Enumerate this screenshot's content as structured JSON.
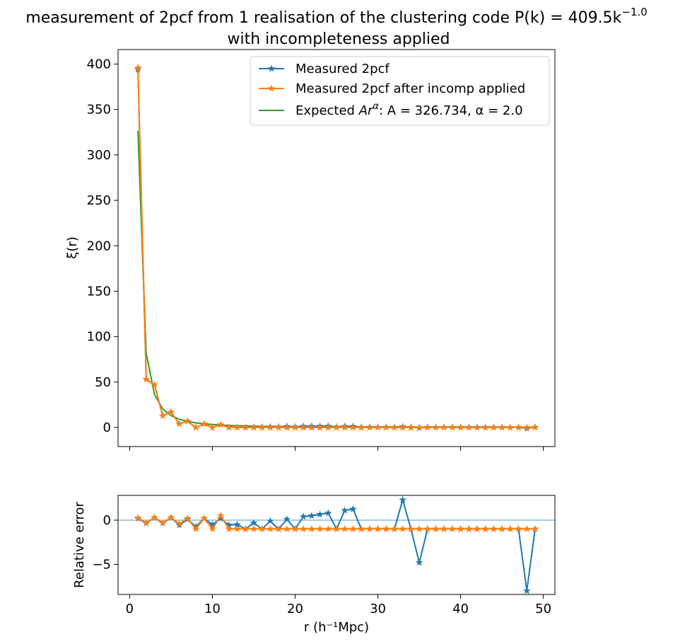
{
  "figure": {
    "title_line1": "measurement of 2pcf from 1 realisation of the clustering code P(k) = 409.5k",
    "title_exponent": "−1.0",
    "title_line2": "with incompleteness applied"
  },
  "colors": {
    "measured": "#1f77b4",
    "incomp": "#ff7f0e",
    "expected": "#2ca02c",
    "refline": "#1f77b4"
  },
  "chart_data": [
    {
      "type": "line",
      "panel": "top",
      "ylabel": "ξ(r)",
      "xlim": [
        -1.4,
        51.4
      ],
      "ylim": [
        -21,
        416
      ],
      "xticks": [
        0,
        10,
        20,
        30,
        40,
        50
      ],
      "yticks": [
        0,
        50,
        100,
        150,
        200,
        250,
        300,
        350,
        400
      ],
      "ytick_labels": [
        "0",
        "50",
        "100",
        "150",
        "200",
        "250",
        "300",
        "350",
        "400"
      ],
      "legend_position": "upper-right",
      "x": [
        1,
        2,
        3,
        4,
        5,
        6,
        7,
        8,
        9,
        10,
        11,
        12,
        13,
        14,
        15,
        16,
        17,
        18,
        19,
        20,
        21,
        22,
        23,
        24,
        25,
        26,
        27,
        28,
        29,
        30,
        31,
        32,
        33,
        34,
        35,
        36,
        37,
        38,
        39,
        40,
        41,
        42,
        43,
        44,
        45,
        46,
        47,
        48,
        49
      ],
      "series": [
        {
          "name": "Measured 2pcf",
          "color": "#1f77b4",
          "marker": "star",
          "values": [
            394,
            53,
            47,
            13,
            17,
            4,
            7,
            0,
            4,
            0,
            3,
            0.1,
            0.1,
            0.1,
            0.4,
            0.5,
            0.7,
            0.6,
            1.1,
            0.7,
            1.3,
            1.3,
            1.3,
            1.4,
            0.6,
            1.2,
            1.1,
            0.4,
            0.4,
            0.3,
            0.3,
            0.3,
            0.8,
            0.3,
            -0.5,
            0.2,
            0.2,
            0.2,
            0.2,
            0.2,
            0.2,
            0.2,
            0.2,
            0.1,
            0.1,
            0.1,
            0.1,
            -1.0,
            0.2
          ]
        },
        {
          "name": "Measured 2pcf after incomp applied",
          "color": "#ff7f0e",
          "marker": "star",
          "values": [
            396,
            53,
            47,
            13,
            17,
            4,
            7,
            0,
            4,
            0,
            3,
            0,
            0,
            0,
            0,
            0,
            0,
            0,
            0,
            0,
            0,
            0,
            0,
            0,
            0,
            0,
            0,
            0,
            0,
            0,
            0,
            0,
            0,
            0,
            0,
            0,
            0,
            0,
            0,
            0,
            0,
            0,
            0,
            0,
            0,
            0,
            0,
            0,
            0
          ]
        },
        {
          "name": "Expected Ar^α: A = 326.734, α = 2.0",
          "color": "#2ca02c",
          "marker": "none",
          "values": [
            326.7,
            81.7,
            36.3,
            20.4,
            13.1,
            9.1,
            6.7,
            5.1,
            4.0,
            3.3,
            2.7,
            2.3,
            1.9,
            1.7,
            1.5,
            1.3,
            1.1,
            1.0,
            0.9,
            0.8,
            0.74,
            0.68,
            0.62,
            0.57,
            0.52,
            0.48,
            0.45,
            0.42,
            0.39,
            0.36,
            0.34,
            0.32,
            0.3,
            0.28,
            0.27,
            0.25,
            0.24,
            0.23,
            0.21,
            0.2,
            0.19,
            0.19,
            0.18,
            0.17,
            0.16,
            0.15,
            0.15,
            0.14,
            0.14
          ]
        }
      ],
      "legend": {
        "measured": "Measured 2pcf",
        "incomp": "Measured 2pcf after incomp applied",
        "expected_prefix": "Expected ",
        "expected_symbol": "Ar",
        "expected_exp": "α",
        "expected_params": ": A = 326.734, α = 2.0"
      }
    },
    {
      "type": "line",
      "panel": "bottom",
      "xlabel": "r (h⁻¹Mpc)",
      "ylabel": "Relative error",
      "xlim": [
        -1.4,
        51.4
      ],
      "ylim": [
        -8.4,
        2.8
      ],
      "xticks": [
        0,
        10,
        20,
        30,
        40,
        50
      ],
      "xtick_labels": [
        "0",
        "10",
        "20",
        "30",
        "40",
        "50"
      ],
      "yticks": [
        0,
        -5
      ],
      "ytick_labels": [
        "0",
        "−5"
      ],
      "reference_line": 0,
      "x": [
        1,
        2,
        3,
        4,
        5,
        6,
        7,
        8,
        9,
        10,
        11,
        12,
        13,
        14,
        15,
        16,
        17,
        18,
        19,
        20,
        21,
        22,
        23,
        24,
        25,
        26,
        27,
        28,
        29,
        30,
        31,
        32,
        33,
        34,
        35,
        36,
        37,
        38,
        39,
        40,
        41,
        42,
        43,
        44,
        45,
        46,
        47,
        48,
        49
      ],
      "series": [
        {
          "name": "Measured 2pcf",
          "color": "#1f77b4",
          "values": [
            0.2,
            -0.35,
            0.3,
            -0.35,
            0.3,
            -0.55,
            0.1,
            -0.75,
            0.2,
            -0.5,
            0.2,
            -0.55,
            -0.5,
            -1.0,
            -0.3,
            -1.0,
            -0.1,
            -1.0,
            0.1,
            -1.0,
            0.4,
            0.5,
            0.65,
            0.8,
            -1.0,
            1.1,
            1.25,
            -1.0,
            -1.0,
            -1.0,
            -1.0,
            -1.0,
            2.3,
            -1.0,
            -4.8,
            -1.0,
            -1.0,
            -1.0,
            -1.0,
            -1.0,
            -1.0,
            -1.0,
            -1.0,
            -1.0,
            -1.0,
            -1.0,
            -1.0,
            -8.0,
            -1.0
          ]
        },
        {
          "name": "Measured 2pcf after incomp applied",
          "color": "#ff7f0e",
          "values": [
            0.25,
            -0.3,
            0.3,
            -0.3,
            0.3,
            -0.4,
            0.2,
            -1.0,
            0.2,
            -1.0,
            0.5,
            -1.0,
            -1.0,
            -1.0,
            -1.0,
            -1.0,
            -1.0,
            -1.0,
            -1.0,
            -1.0,
            -1.0,
            -1.0,
            -1.0,
            -1.0,
            -1.0,
            -1.0,
            -1.0,
            -1.0,
            -1.0,
            -1.0,
            -1.0,
            -1.0,
            -1.0,
            -1.0,
            -1.0,
            -1.0,
            -1.0,
            -1.0,
            -1.0,
            -1.0,
            -1.0,
            -1.0,
            -1.0,
            -1.0,
            -1.0,
            -1.0,
            -1.0,
            -1.0,
            -1.0
          ]
        }
      ]
    }
  ]
}
